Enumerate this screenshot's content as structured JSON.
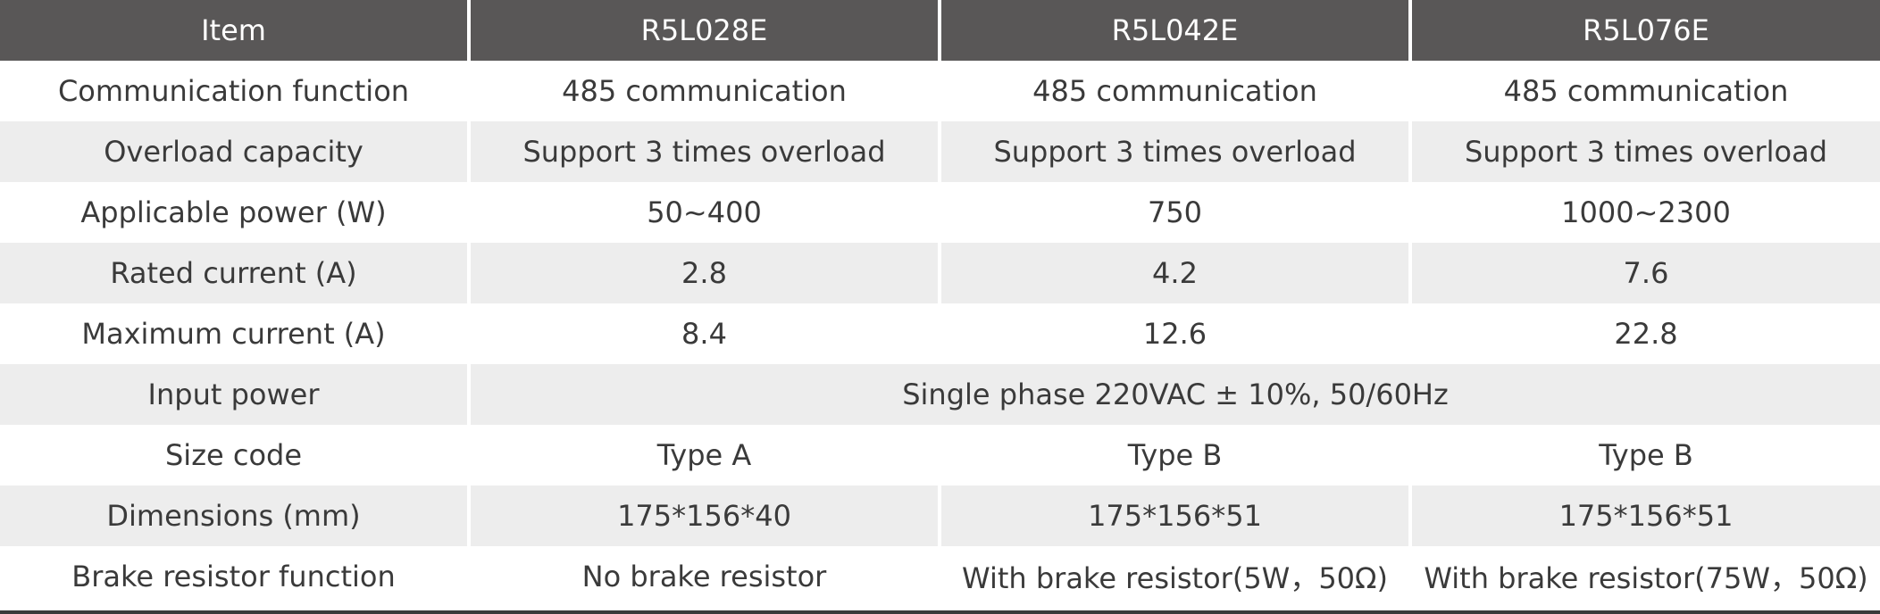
{
  "header": {
    "item": "Item",
    "models": [
      "R5L028E",
      "R5L042E",
      "R5L076E"
    ]
  },
  "rows": [
    {
      "label": "Communication function",
      "values": [
        "485 communication",
        "485 communication",
        "485 communication"
      ]
    },
    {
      "label": "Overload capacity",
      "values": [
        "Support 3 times overload",
        "Support 3 times overload",
        "Support 3 times overload"
      ]
    },
    {
      "label": "Applicable power (W)",
      "values": [
        "50~400",
        "750",
        "1000~2300"
      ]
    },
    {
      "label": "Rated current (A)",
      "values": [
        "2.8",
        "4.2",
        "7.6"
      ]
    },
    {
      "label": "Maximum current (A)",
      "values": [
        "8.4",
        "12.6",
        "22.8"
      ]
    },
    {
      "label": "Input power",
      "merged_value": "Single phase 220VAC ± 10%, 50/60Hz"
    },
    {
      "label": "Size code",
      "values": [
        "Type A",
        "Type B",
        "Type B"
      ]
    },
    {
      "label": "Dimensions (mm)",
      "values": [
        "175*156*40",
        "175*156*51",
        "175*156*51"
      ]
    },
    {
      "label": "Brake resistor function",
      "values": [
        "No brake resistor",
        "With brake resistor(5W，50Ω)",
        "With brake resistor(75W，50Ω)"
      ]
    }
  ],
  "colors": {
    "header_bg": "#595757",
    "header_text": "#ffffff",
    "body_text": "#3a3a3a",
    "stripe_bg": "#ededed",
    "row_bg": "#ffffff"
  }
}
